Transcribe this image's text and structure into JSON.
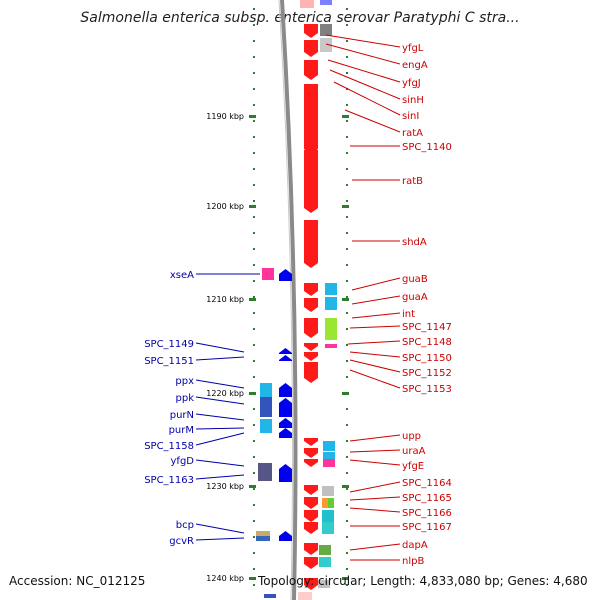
{
  "title": "Salmonella enterica subsp. enterica serovar Paratyphi C stra...",
  "footer": {
    "accession": "Accession: NC_012125",
    "topology": "Topology: circular; Length: 4,833,080 bp; Genes: 4,680"
  },
  "colors": {
    "right_label": "#cc0000",
    "left_label": "#0000aa",
    "forward_gene": "#ff0000",
    "reverse_gene": "#0000ff",
    "backbone": "#888888",
    "tick": "#227722"
  },
  "axis": {
    "ticks": [
      {
        "pos": 1190,
        "label": "1190 kbp"
      },
      {
        "pos": 1200,
        "label": "1200 kbp"
      },
      {
        "pos": 1210,
        "label": "1210 kbp"
      },
      {
        "pos": 1220,
        "label": "1220 kbp"
      },
      {
        "pos": 1230,
        "label": "1230 kbp"
      },
      {
        "pos": 1240,
        "label": "1240 kbp"
      }
    ]
  },
  "right_genes": [
    "yfgL",
    "engA",
    "yfgJ",
    "sinH",
    "sinI",
    "ratA",
    "SPC_1140",
    "ratB",
    "shdA",
    "guaB",
    "guaA",
    "int",
    "SPC_1147",
    "SPC_1148",
    "SPC_1150",
    "SPC_1152",
    "SPC_1153",
    "upp",
    "uraA",
    "yfgE",
    "SPC_1164",
    "SPC_1165",
    "SPC_1166",
    "SPC_1167",
    "dapA",
    "nlpB"
  ],
  "left_genes": [
    "xseA",
    "SPC_1149",
    "SPC_1151",
    "ppx",
    "ppk",
    "purN",
    "purM",
    "SPC_1158",
    "yfgD",
    "SPC_1163",
    "bcp",
    "gcvR"
  ]
}
